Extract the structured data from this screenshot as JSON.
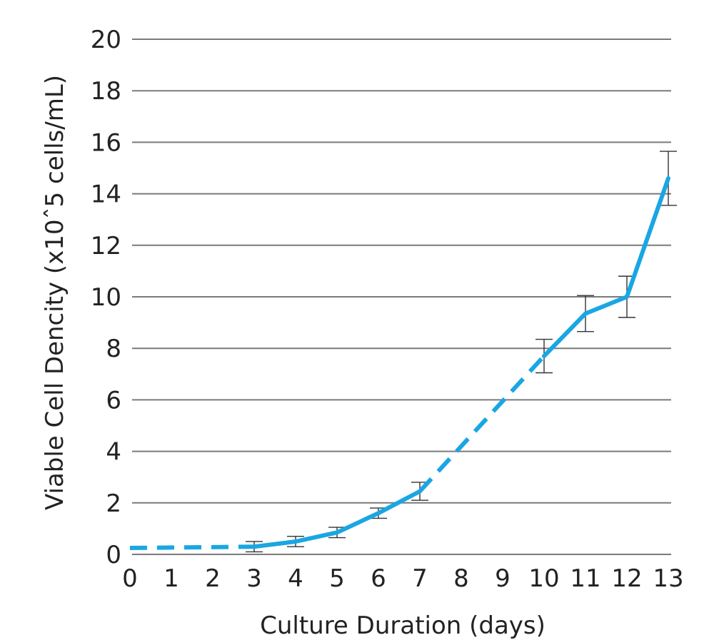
{
  "chart_data": {
    "type": "line",
    "xlabel": "Culture Duration (days)",
    "ylabel": "Viable Cell Dencity (x10ˆ5 cells/mL)",
    "xlim": [
      0,
      13
    ],
    "ylim": [
      0,
      20
    ],
    "x_ticks": [
      "0",
      "1",
      "2",
      "3",
      "4",
      "5",
      "6",
      "7",
      "8",
      "9",
      "10",
      "11",
      "12",
      "13"
    ],
    "y_ticks": [
      "0",
      "2",
      "4",
      "6",
      "8",
      "10",
      "12",
      "14",
      "16",
      "18",
      "20"
    ],
    "grid": true,
    "line_color": "#1aa6e3",
    "series": [
      {
        "points": [
          {
            "x": 3,
            "y": 0.3
          },
          {
            "x": 4,
            "y": 0.5
          },
          {
            "x": 5,
            "y": 0.85
          },
          {
            "x": 6,
            "y": 1.6
          },
          {
            "x": 7,
            "y": 2.45
          },
          {
            "x": 10,
            "y": 7.7
          },
          {
            "x": 11,
            "y": 9.35
          },
          {
            "x": 12,
            "y": 10.0
          },
          {
            "x": 13,
            "y": 14.6
          }
        ],
        "error": [
          0.2,
          0.2,
          0.2,
          0.2,
          0.35,
          0.65,
          0.7,
          0.8,
          1.05
        ]
      }
    ],
    "dashed_segments": [
      [
        {
          "x": 0,
          "y": 0.25
        },
        {
          "x": 3,
          "y": 0.3
        }
      ],
      [
        {
          "x": 7,
          "y": 2.45
        },
        {
          "x": 10,
          "y": 7.7
        }
      ]
    ]
  }
}
